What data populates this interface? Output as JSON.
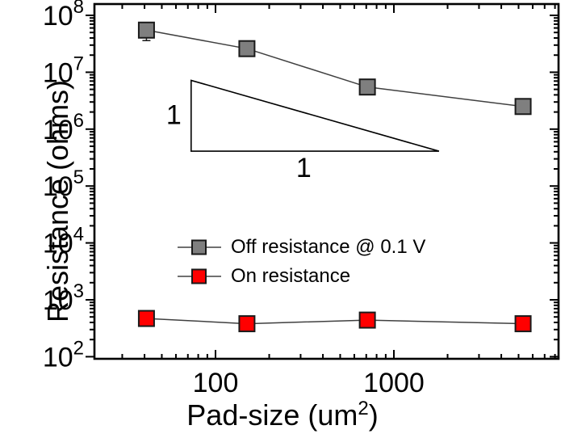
{
  "chart_data": {
    "type": "line",
    "title": "",
    "x_scale": "log",
    "y_scale": "log",
    "x_axis": {
      "label_prefix": "Pad-size (um",
      "label_sup": "2",
      "label_suffix": ")",
      "range": [
        21,
        8400
      ],
      "major_tick_values": [
        100,
        1000
      ],
      "major_tick_labels": [
        "100",
        "1000"
      ]
    },
    "y_axis": {
      "label": "Resistance (ohms)",
      "range": [
        100,
        160000000
      ],
      "tick_label_base": "10",
      "tick_label_exponents": [
        2,
        3,
        4,
        5,
        6,
        7,
        8
      ]
    },
    "grid": "off",
    "legend_position": "inside-center-left",
    "series": [
      {
        "name": "Off resistance @ 0.1 V",
        "marker": "square",
        "marker_color": "#7f7f7f",
        "marker_edge_color": "#1a1a1a",
        "line_color": "#404040",
        "x": [
          41,
          150,
          710,
          5300
        ],
        "y": [
          55000000,
          26000000,
          5500000,
          2500000
        ],
        "y_err_low": [
          36000000,
          21000000,
          4500000,
          2050000
        ],
        "y_err_high": [
          65000000,
          32000000,
          6700000,
          3050000
        ]
      },
      {
        "name": "On resistance",
        "marker": "square",
        "marker_color": "#ff0000",
        "marker_edge_color": "#1a1a1a",
        "line_color": "#404040",
        "x": [
          41,
          150,
          710,
          5300
        ],
        "y": [
          470,
          380,
          440,
          380
        ],
        "y_err_low": [
          385,
          310,
          360,
          310
        ],
        "y_err_high": [
          575,
          465,
          540,
          465
        ]
      }
    ],
    "annotations": {
      "slope_triangle": {
        "x_left": 73,
        "x_right": 1790,
        "y_top": 7200000,
        "y_bottom": 410000,
        "vertical_label": "1",
        "horizontal_label": "1"
      }
    }
  }
}
